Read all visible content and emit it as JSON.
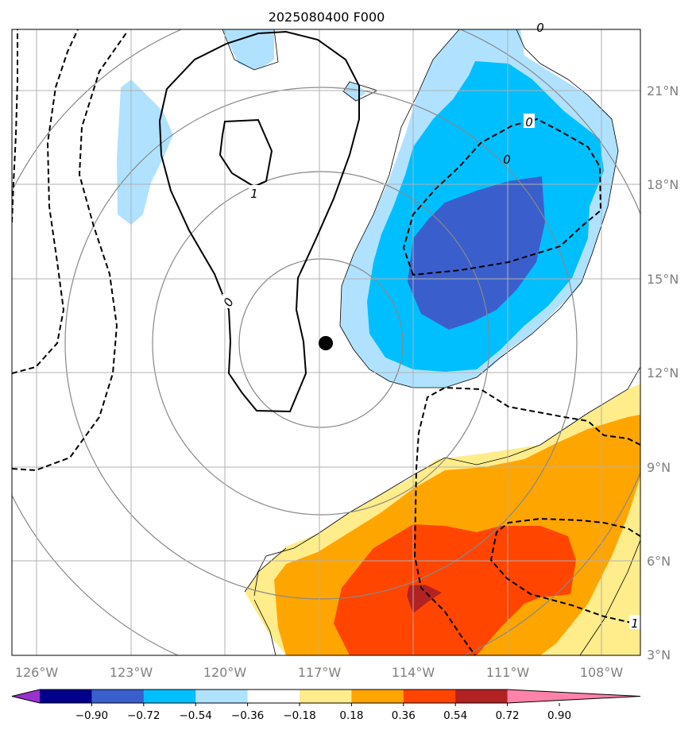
{
  "chart_data": {
    "type": "contourf",
    "title": "2025080400 F000",
    "x_ticks": [
      "126°W",
      "123°W",
      "120°W",
      "117°W",
      "114°W",
      "111°W",
      "108°W"
    ],
    "y_ticks": [
      "21°N",
      "18°N",
      "15°N",
      "12°N",
      "9°N",
      "6°N",
      "3°N"
    ],
    "xlim": [
      -126.8,
      -106.8
    ],
    "ylim": [
      3.0,
      22.9
    ],
    "grid": true,
    "storm_center": {
      "lon": -116.8,
      "lat": 12.9
    },
    "colorbar": {
      "levels": [
        "−0.90",
        "−0.72",
        "−0.54",
        "−0.36",
        "−0.18",
        "0.18",
        "0.36",
        "0.54",
        "0.72",
        "0.90"
      ],
      "colors": [
        "#9932cc",
        "#00008b",
        "#3a5fcd",
        "#00bfff",
        "#b0e2ff",
        "#ffffff",
        "#ffec8b",
        "#ffa500",
        "#ff4500",
        "#b22222",
        "#ff82ab"
      ],
      "extend": "both"
    },
    "contour_labels": [
      "1",
      "0",
      "0",
      "0",
      "1",
      "0"
    ]
  }
}
